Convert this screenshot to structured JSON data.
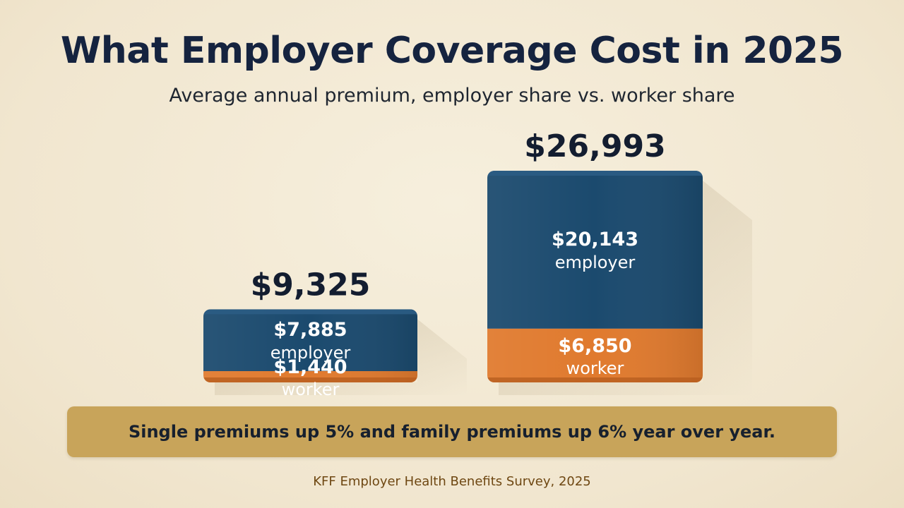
{
  "header": {
    "title": "What Employer Coverage Cost in 2025",
    "subtitle": "Average annual premium, employer share vs. worker share"
  },
  "chart_data": {
    "type": "bar",
    "stacked": true,
    "categories": [
      "",
      ""
    ],
    "totals": [
      "$9,325",
      "$26,993"
    ],
    "series": [
      {
        "name": "employer",
        "values": [
          7885,
          20143
        ],
        "labels": [
          "$7,885",
          "$20,143"
        ],
        "color": "#1b4a6e"
      },
      {
        "name": "worker",
        "values": [
          1440,
          6850
        ],
        "labels": [
          "$1,440",
          "$6,850"
        ],
        "color": "#e07a2e"
      }
    ],
    "title": "What Employer Coverage Cost in 2025",
    "subtitle": "Average annual premium, employer share vs. worker share",
    "grid": false,
    "legend": "none"
  },
  "callout": {
    "text": "Single premiums up 5% and family premiums up 6% year over year."
  },
  "source": {
    "text": "KFF Employer Health Benefits Survey, 2025"
  },
  "colors": {
    "background": "#f3ead5",
    "employer": "#1b4a6e",
    "worker": "#e07a2e",
    "callout": "#c8a45a",
    "title": "#15233f",
    "source": "#6e4712"
  }
}
